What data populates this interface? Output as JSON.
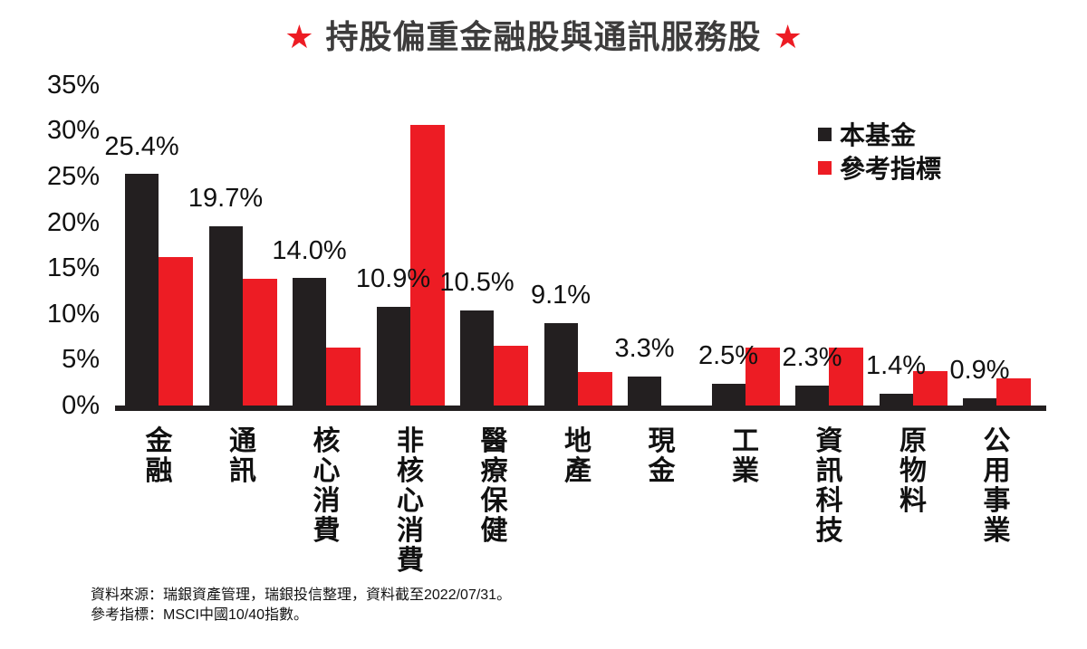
{
  "title": {
    "star": "★",
    "text": "持股偏重金融股與通訊服務股"
  },
  "colors": {
    "ink": "#231f20",
    "accent_red": "#ed1c24",
    "title_gray": "#3d3c3c"
  },
  "legend": {
    "items": [
      {
        "label": "本基金",
        "color": "#231f20"
      },
      {
        "label": "參考指標",
        "color": "#ed1c24"
      }
    ]
  },
  "footer": {
    "line1": "資料來源：瑞銀資產管理，瑞銀投信整理，資料截至2022/07/31。",
    "line2": "參考指標：MSCI中國10/40指數。"
  },
  "chart_data": {
    "type": "bar",
    "title": "持股偏重金融股與通訊服務股",
    "categories": [
      "金融",
      "通訊",
      "核心消費",
      "非核心消費",
      "醫療保健",
      "地產",
      "現金",
      "工業",
      "資訊科技",
      "原物料",
      "公用事業"
    ],
    "series": [
      {
        "name": "本基金",
        "color": "#231f20",
        "values": [
          25.4,
          19.7,
          14.0,
          10.9,
          10.5,
          9.1,
          3.3,
          2.5,
          2.3,
          1.4,
          0.9
        ],
        "labels": [
          "25.4%",
          "19.7%",
          "14.0%",
          "10.9%",
          "10.5%",
          "9.1%",
          "3.3%",
          "2.5%",
          "2.3%",
          "1.4%",
          "0.9%"
        ]
      },
      {
        "name": "參考指標",
        "color": "#ed1c24",
        "values": [
          16.3,
          13.9,
          6.4,
          30.7,
          6.6,
          3.8,
          0,
          6.4,
          6.4,
          3.9,
          3.1
        ]
      }
    ],
    "xlabel": "",
    "ylabel": "",
    "ylim": [
      0,
      35
    ],
    "grid": false,
    "legend_position": "upper right",
    "yticks": [
      {
        "value": 0,
        "label": "0%"
      },
      {
        "value": 5,
        "label": "5%"
      },
      {
        "value": 10,
        "label": "10%"
      },
      {
        "value": 15,
        "label": "15%"
      },
      {
        "value": 20,
        "label": "20%"
      },
      {
        "value": 25,
        "label": "25%"
      },
      {
        "value": 30,
        "label": "30%"
      },
      {
        "value": 35,
        "label": "35%"
      }
    ]
  }
}
